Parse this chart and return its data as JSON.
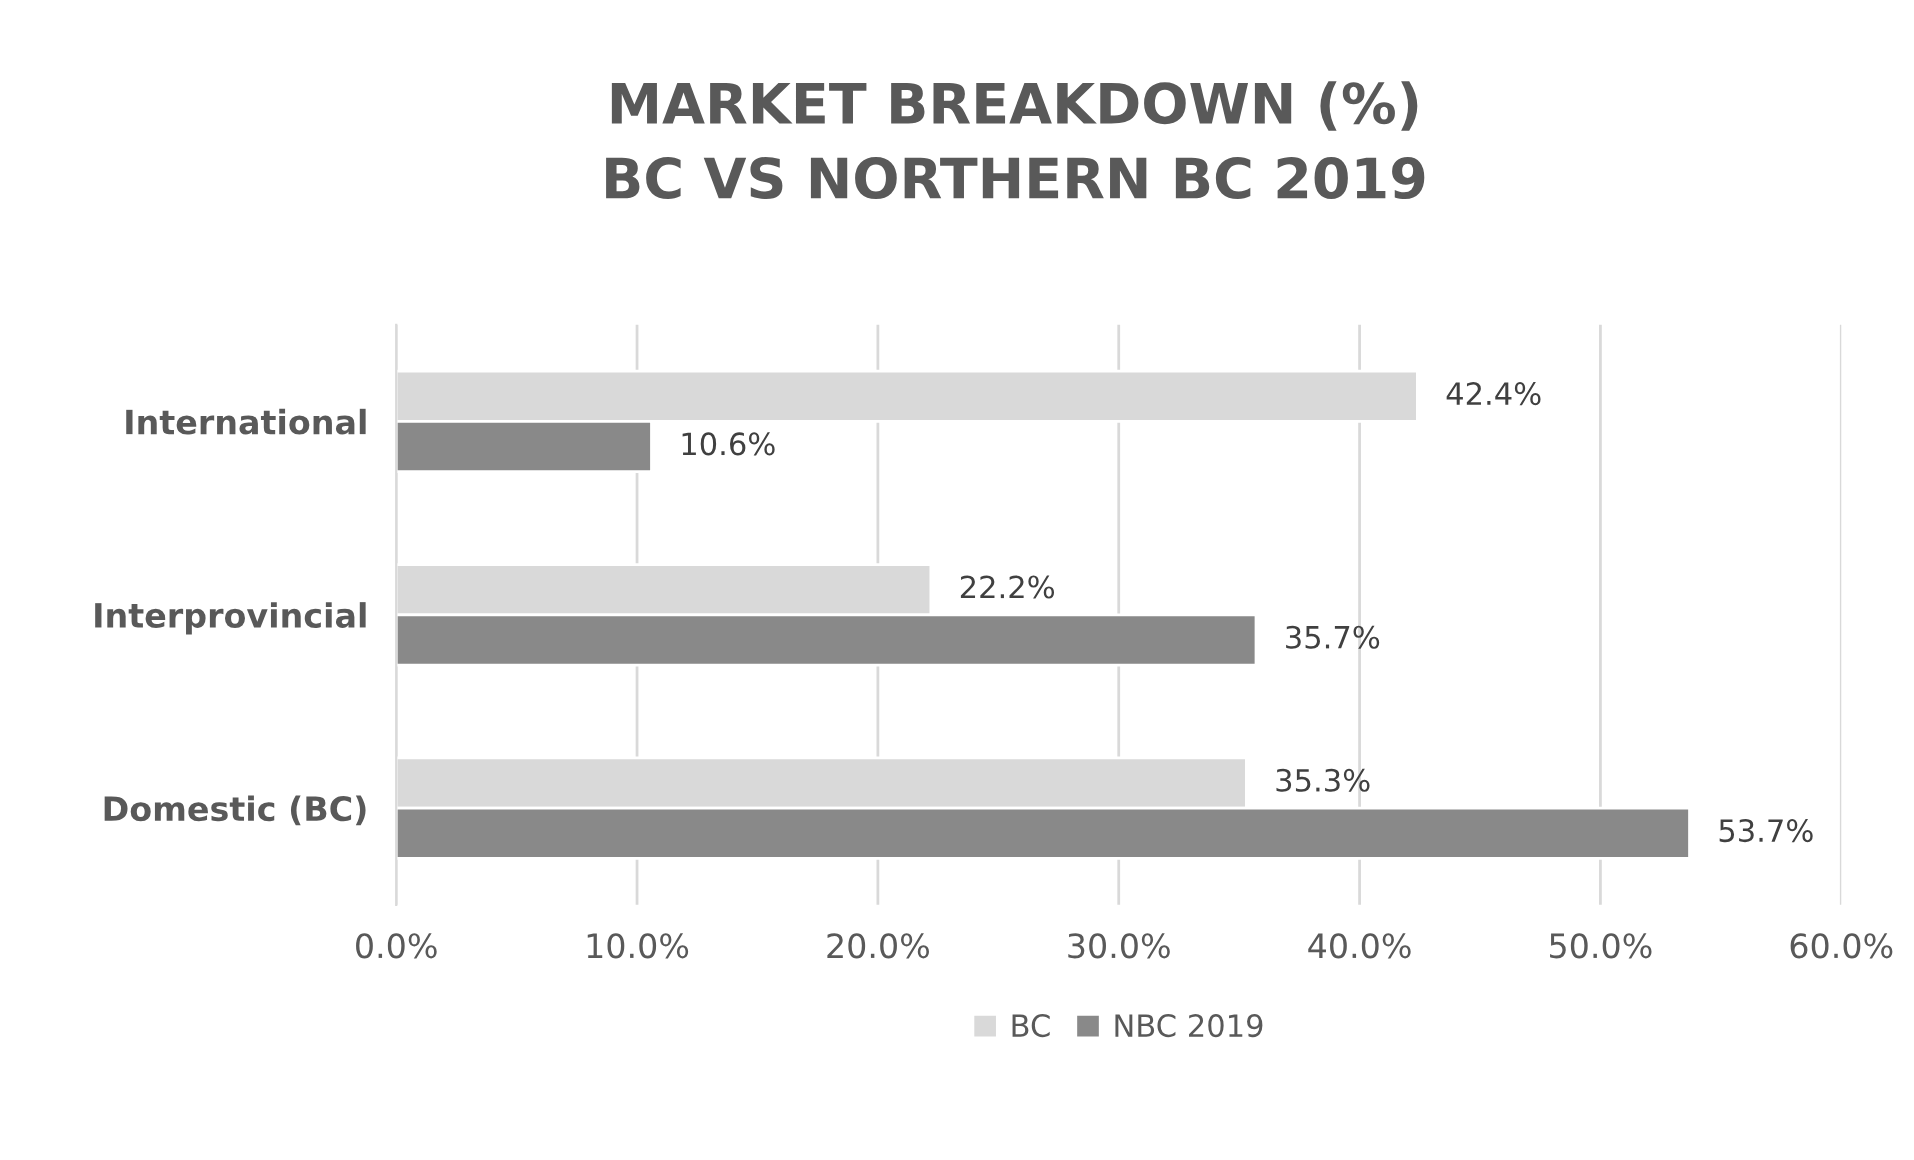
{
  "chart_data": {
    "type": "bar",
    "orientation": "horizontal",
    "title": "MARKET BREAKDOWN (%)\nBC VS NORTHERN BC 2019",
    "categories": [
      "International",
      "Interprovincial",
      "Domestic (BC)"
    ],
    "series": [
      {
        "name": "BC",
        "color": "#d9d9d9",
        "values": [
          42.4,
          22.2,
          35.3
        ],
        "value_labels": [
          "42.4%",
          "22.2%",
          "35.3%"
        ]
      },
      {
        "name": "NBC 2019",
        "color": "#898989",
        "values": [
          10.6,
          35.7,
          53.7
        ],
        "value_labels": [
          "10.6%",
          "35.7%",
          "53.7%"
        ]
      }
    ],
    "xlim": [
      0,
      60
    ],
    "xticks": [
      {
        "value": 0,
        "label": "0.0%"
      },
      {
        "value": 10,
        "label": "10.0%"
      },
      {
        "value": 20,
        "label": "20.0%"
      },
      {
        "value": 30,
        "label": "30.0%"
      },
      {
        "value": 40,
        "label": "40.0%"
      },
      {
        "value": 50,
        "label": "50.0%"
      },
      {
        "value": 60,
        "label": "60.0%"
      }
    ],
    "grid": "x",
    "legend": "bottom"
  }
}
